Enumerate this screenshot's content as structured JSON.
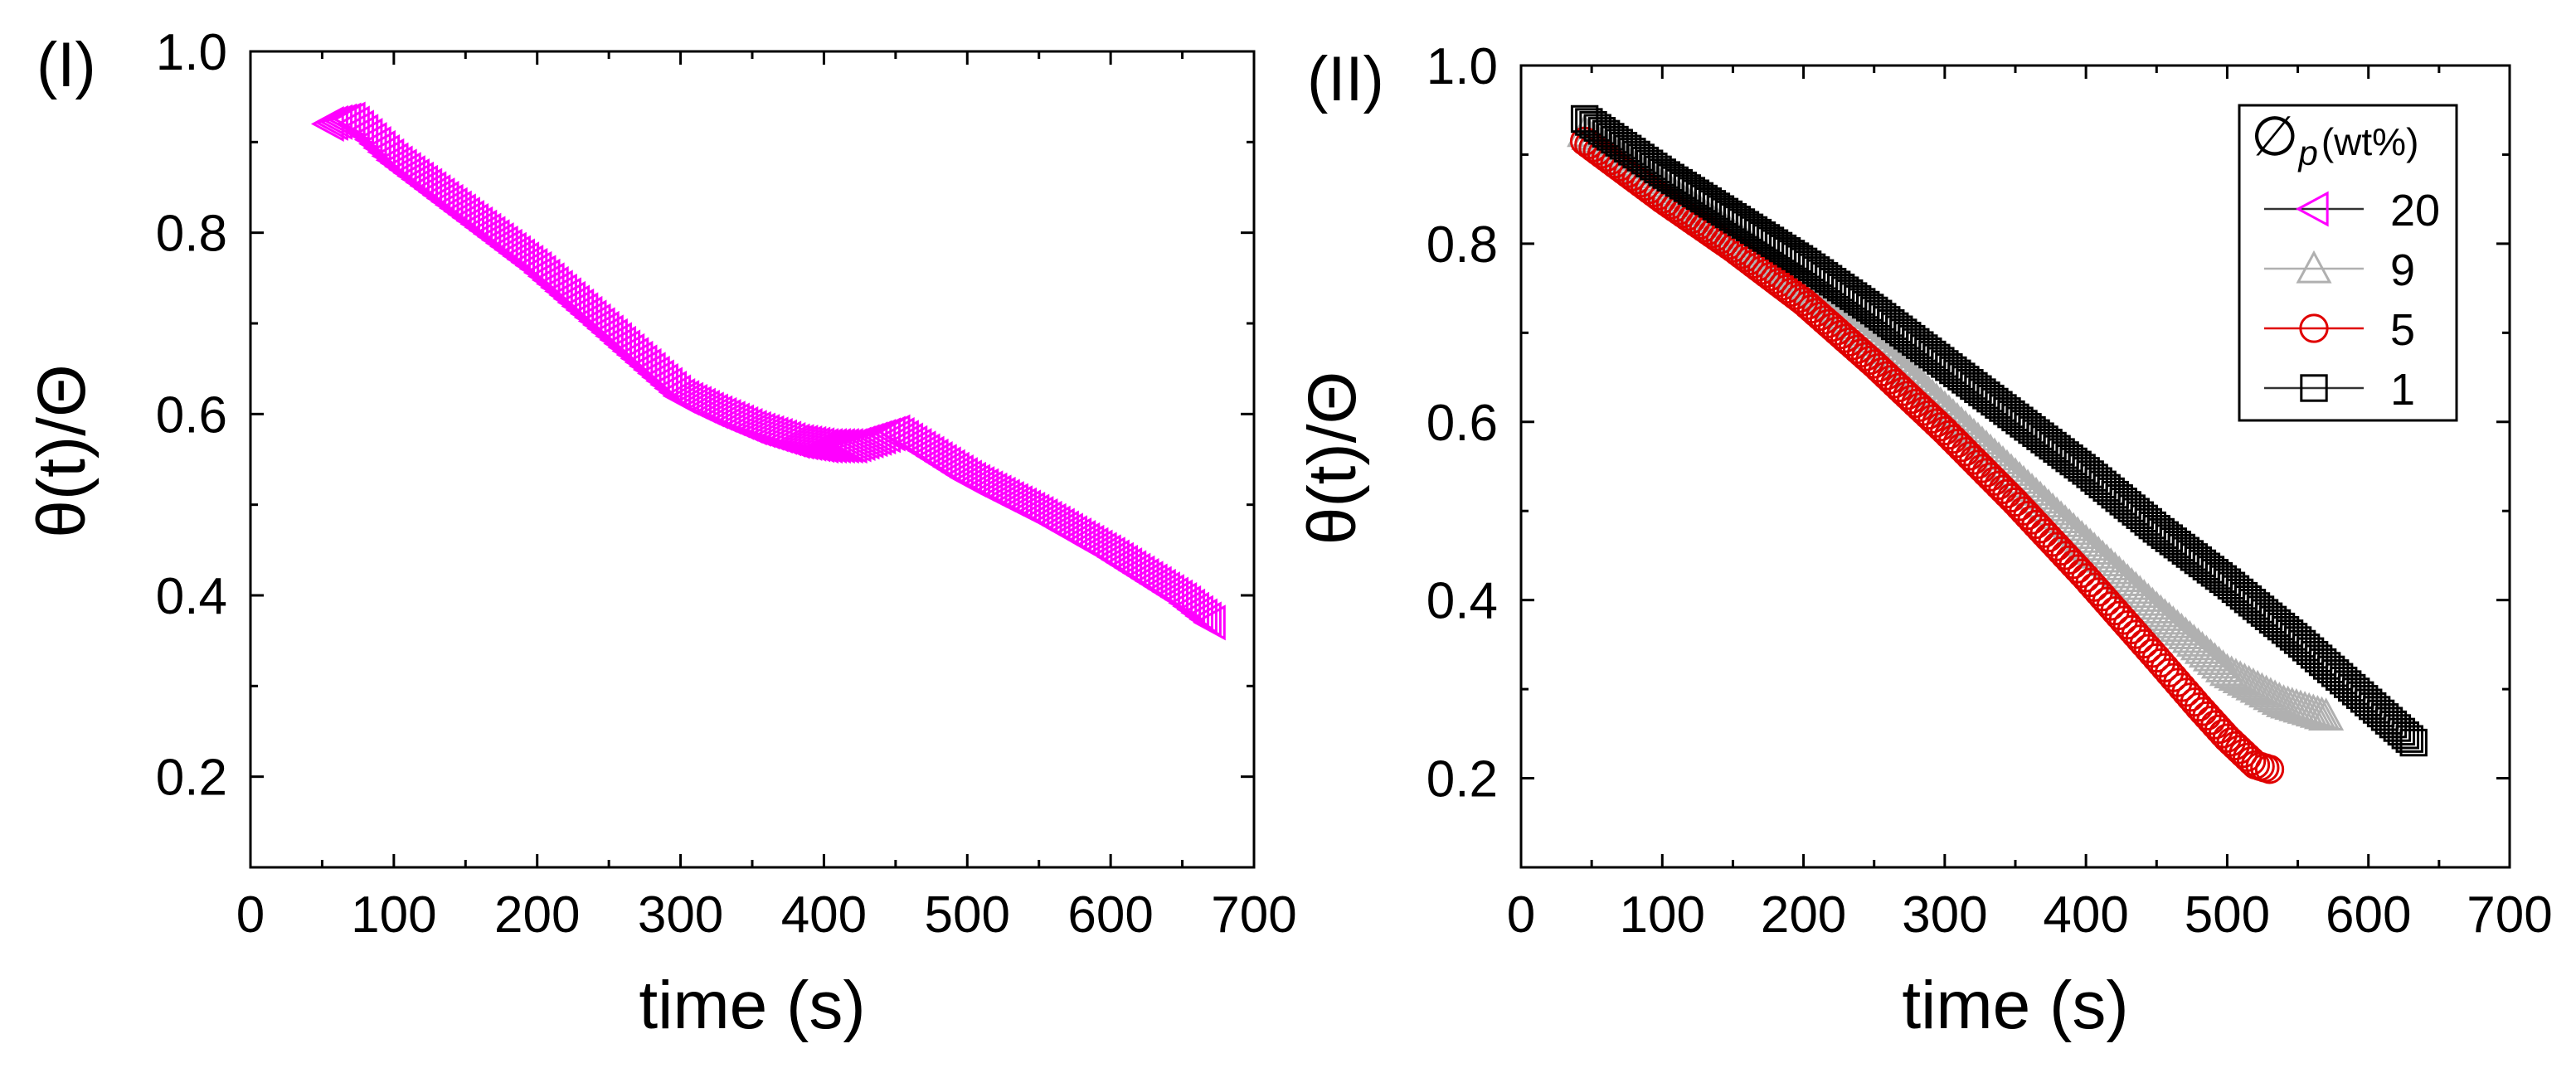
{
  "chart_data": [
    {
      "panel_label": "(I)",
      "type": "scatter",
      "xlabel": "time (s)",
      "ylabel": "θ(t)/Θ",
      "xlim": [
        0,
        700
      ],
      "ylim": [
        0.1,
        1.0
      ],
      "xticks": [
        "0",
        "100",
        "200",
        "300",
        "400",
        "500",
        "600",
        "700"
      ],
      "yticks": [
        "0.2",
        "0.4",
        "0.6",
        "0.8",
        "1.0"
      ],
      "series": [
        {
          "name": "20",
          "marker": "triangle-left",
          "color": "#ff00ff",
          "points": [
            [
              55,
              0.92
            ],
            [
              70,
              0.925
            ],
            [
              100,
              0.88
            ],
            [
              150,
              0.82
            ],
            [
              200,
              0.76
            ],
            [
              250,
              0.69
            ],
            [
              300,
              0.62
            ],
            [
              320,
              0.605
            ],
            [
              350,
              0.585
            ],
            [
              380,
              0.57
            ],
            [
              400,
              0.565
            ],
            [
              420,
              0.565
            ],
            [
              440,
              0.575
            ],
            [
              450,
              0.58
            ],
            [
              465,
              0.565
            ],
            [
              500,
              0.53
            ],
            [
              550,
              0.49
            ],
            [
              600,
              0.445
            ],
            [
              650,
              0.395
            ],
            [
              670,
              0.37
            ]
          ]
        }
      ]
    },
    {
      "panel_label": "(II)",
      "type": "scatter",
      "xlabel": "time (s)",
      "ylabel": "θ(t)/Θ",
      "xlim": [
        0,
        700
      ],
      "ylim": [
        0.1,
        1.0
      ],
      "xticks": [
        "0",
        "100",
        "200",
        "300",
        "400",
        "500",
        "600",
        "700"
      ],
      "yticks": [
        "0.2",
        "0.4",
        "0.6",
        "0.8",
        "1.0"
      ],
      "legend": {
        "title": "∅",
        "title_sub": "p",
        "title_unit": "(wt%)",
        "position": "top-right"
      },
      "series": [
        {
          "name": "20",
          "marker": "triangle-left",
          "color": "#ff00ff",
          "points": []
        },
        {
          "name": "9",
          "marker": "triangle-up",
          "color": "#b0b0b0",
          "points": [
            [
              45,
              0.925
            ],
            [
              100,
              0.865
            ],
            [
              150,
              0.81
            ],
            [
              200,
              0.755
            ],
            [
              250,
              0.69
            ],
            [
              300,
              0.615
            ],
            [
              350,
              0.54
            ],
            [
              400,
              0.465
            ],
            [
              450,
              0.39
            ],
            [
              500,
              0.32
            ],
            [
              540,
              0.285
            ],
            [
              570,
              0.27
            ]
          ]
        },
        {
          "name": "5",
          "marker": "circle",
          "color": "#e00000",
          "points": [
            [
              45,
              0.915
            ],
            [
              100,
              0.85
            ],
            [
              150,
              0.795
            ],
            [
              200,
              0.735
            ],
            [
              250,
              0.665
            ],
            [
              300,
              0.59
            ],
            [
              350,
              0.51
            ],
            [
              400,
              0.425
            ],
            [
              450,
              0.335
            ],
            [
              480,
              0.28
            ],
            [
              500,
              0.245
            ],
            [
              520,
              0.215
            ],
            [
              530,
              0.21
            ]
          ]
        },
        {
          "name": "1",
          "marker": "square",
          "color": "#000000",
          "points": [
            [
              45,
              0.94
            ],
            [
              100,
              0.88
            ],
            [
              150,
              0.83
            ],
            [
              200,
              0.78
            ],
            [
              250,
              0.725
            ],
            [
              300,
              0.665
            ],
            [
              350,
              0.605
            ],
            [
              400,
              0.545
            ],
            [
              450,
              0.48
            ],
            [
              500,
              0.42
            ],
            [
              550,
              0.355
            ],
            [
              600,
              0.285
            ],
            [
              632,
              0.24
            ]
          ]
        }
      ]
    }
  ]
}
